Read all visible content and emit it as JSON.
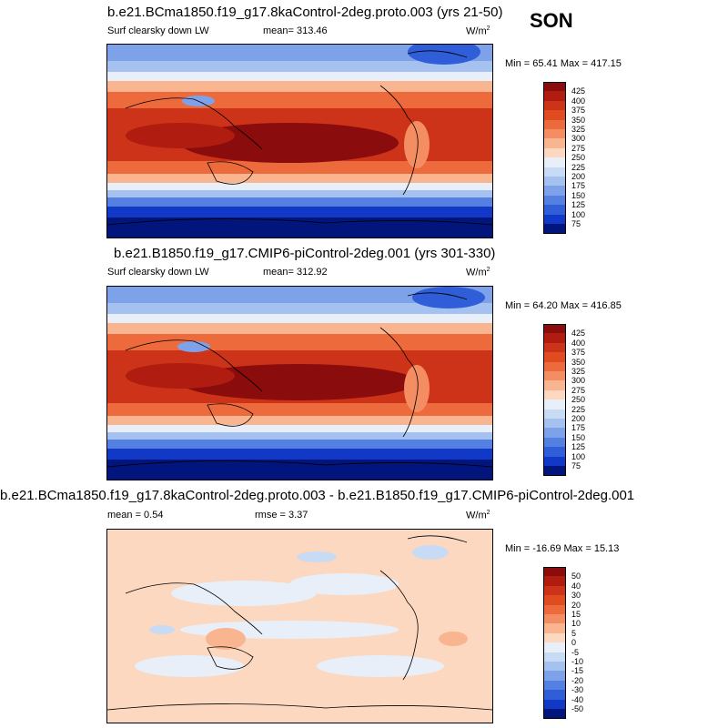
{
  "season": "SON",
  "panels": [
    {
      "title": "b.e21.BCma1850.f19_g17.8kaControl-2deg.proto.003 (yrs 21-50)",
      "left_label": "Surf clearsky down LW",
      "center_label": "mean= 313.46",
      "units": "W/m",
      "units_sup": "2",
      "minmax": "Min =  65.41 Max = 417.15",
      "colorbar": {
        "labels": [
          "425",
          "400",
          "375",
          "350",
          "325",
          "300",
          "275",
          "250",
          "225",
          "200",
          "175",
          "150",
          "125",
          "100",
          "75"
        ],
        "colors": [
          "#8b0c0c",
          "#b01c10",
          "#cc3318",
          "#e04b20",
          "#ec6a3c",
          "#f48d62",
          "#f9b490",
          "#fcd8c0",
          "#e8eff8",
          "#c8dbf4",
          "#a4c1ef",
          "#7da2ea",
          "#5480e2",
          "#2f5ed8",
          "#1238c8",
          "#02157d"
        ]
      }
    },
    {
      "title": "b.e21.B1850.f19_g17.CMIP6-piControl-2deg.001 (yrs 301-330)",
      "left_label": "Surf clearsky down LW",
      "center_label": "mean= 312.92",
      "units": "W/m",
      "units_sup": "2",
      "minmax": "Min =  64.20 Max = 416.85",
      "colorbar": {
        "labels": [
          "425",
          "400",
          "375",
          "350",
          "325",
          "300",
          "275",
          "250",
          "225",
          "200",
          "175",
          "150",
          "125",
          "100",
          "75"
        ],
        "colors": [
          "#8b0c0c",
          "#b01c10",
          "#cc3318",
          "#e04b20",
          "#ec6a3c",
          "#f48d62",
          "#f9b490",
          "#fcd8c0",
          "#e8eff8",
          "#c8dbf4",
          "#a4c1ef",
          "#7da2ea",
          "#5480e2",
          "#2f5ed8",
          "#1238c8",
          "#02157d"
        ]
      }
    },
    {
      "title": "b.e21.BCma1850.f19_g17.8kaControl-2deg.proto.003 - b.e21.B1850.f19_g17.CMIP6-piControl-2deg.001",
      "left_label": "mean =   0.54",
      "center_label": "rmse =   3.37",
      "units": "W/m",
      "units_sup": "2",
      "minmax": "Min = -16.69 Max =  15.13",
      "colorbar": {
        "labels": [
          "50",
          "40",
          "30",
          "20",
          "15",
          "10",
          "5",
          "0",
          "-5",
          "-10",
          "-15",
          "-20",
          "-30",
          "-40",
          "-50"
        ],
        "colors": [
          "#8b0c0c",
          "#b01c10",
          "#cc3318",
          "#e04b20",
          "#ec6a3c",
          "#f48d62",
          "#f9b490",
          "#fcd8c0",
          "#e8eff8",
          "#c8dbf4",
          "#a4c1ef",
          "#7da2ea",
          "#5480e2",
          "#2f5ed8",
          "#1238c8",
          "#02157d"
        ]
      }
    }
  ]
}
